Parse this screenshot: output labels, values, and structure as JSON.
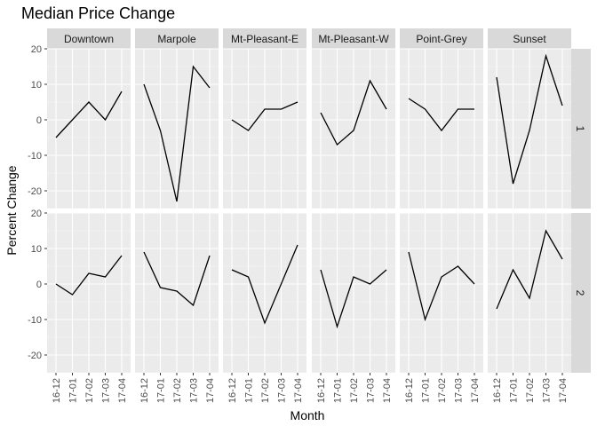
{
  "chart_data": {
    "type": "line",
    "title": "Median Price Change",
    "xlabel": "Month",
    "ylabel": "Percent Change",
    "x": [
      "16-12",
      "17-01",
      "17-02",
      "17-03",
      "17-04"
    ],
    "ylim": [
      -25,
      20
    ],
    "yticks": [
      -20,
      -10,
      0,
      10,
      20
    ],
    "grid": true,
    "columns": [
      "Downtown",
      "Marpole",
      "Mt-Pleasant-E",
      "Mt-Pleasant-W",
      "Point-Grey",
      "Sunset"
    ],
    "rows": [
      "1",
      "2"
    ],
    "panels": [
      {
        "row": "1",
        "column": "Downtown",
        "values": [
          -5,
          0,
          5,
          0,
          8
        ]
      },
      {
        "row": "1",
        "column": "Marpole",
        "values": [
          10,
          -3,
          -23,
          15,
          9
        ]
      },
      {
        "row": "1",
        "column": "Mt-Pleasant-E",
        "values": [
          0,
          -3,
          3,
          3,
          5
        ]
      },
      {
        "row": "1",
        "column": "Mt-Pleasant-W",
        "values": [
          2,
          -7,
          -3,
          11,
          3
        ]
      },
      {
        "row": "1",
        "column": "Point-Grey",
        "values": [
          6,
          3,
          -3,
          3,
          3
        ]
      },
      {
        "row": "1",
        "column": "Sunset",
        "values": [
          12,
          -18,
          -3,
          18,
          4
        ]
      },
      {
        "row": "2",
        "column": "Downtown",
        "values": [
          0,
          -3,
          3,
          2,
          8
        ]
      },
      {
        "row": "2",
        "column": "Marpole",
        "values": [
          9,
          -1,
          -2,
          -6,
          8
        ]
      },
      {
        "row": "2",
        "column": "Mt-Pleasant-E",
        "values": [
          4,
          2,
          -11,
          0,
          11
        ]
      },
      {
        "row": "2",
        "column": "Mt-Pleasant-W",
        "values": [
          4,
          -12,
          2,
          0,
          4
        ]
      },
      {
        "row": "2",
        "column": "Point-Grey",
        "values": [
          9,
          -10,
          2,
          5,
          0
        ]
      },
      {
        "row": "2",
        "column": "Sunset",
        "values": [
          -7,
          4,
          -4,
          15,
          7
        ]
      }
    ]
  }
}
